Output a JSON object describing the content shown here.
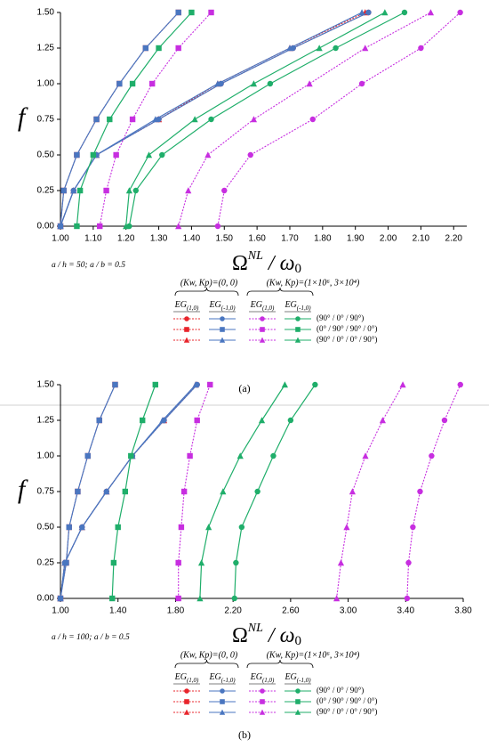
{
  "charts": [
    {
      "chart_data": {
        "type": "line",
        "panel": "(a)",
        "note": "a / h = 50;  a / b = 0.5",
        "y_label": "f",
        "x_label": {
          "base": "Ω",
          "sup": "NL",
          "mid": " / ω",
          "sub": "0"
        },
        "xlim": [
          1.0,
          2.24
        ],
        "ylim": [
          0,
          1.5
        ],
        "xticks": [
          {
            "value": 1.0,
            "label": "1.00"
          },
          {
            "value": 1.1,
            "label": "1.10"
          },
          {
            "value": 1.2,
            "label": "1.20"
          },
          {
            "value": 1.3,
            "label": "1.30"
          },
          {
            "value": 1.4,
            "label": "1.40"
          },
          {
            "value": 1.5,
            "label": "1.50"
          },
          {
            "value": 1.6,
            "label": "1.60"
          },
          {
            "value": 1.7,
            "label": "1.70"
          },
          {
            "value": 1.8,
            "label": "1.80"
          },
          {
            "value": 1.9,
            "label": "1.90"
          },
          {
            "value": 2.0,
            "label": "2.00"
          },
          {
            "value": 2.1,
            "label": "2.10"
          },
          {
            "value": 2.2,
            "label": "2.20"
          }
        ],
        "yticks": [
          {
            "value": 0,
            "label": "0.00"
          },
          {
            "value": 0.25,
            "label": "0.25"
          },
          {
            "value": 0.5,
            "label": "0.50"
          },
          {
            "value": 0.75,
            "label": "0.75"
          },
          {
            "value": 1.0,
            "label": "1.00"
          },
          {
            "value": 1.25,
            "label": "1.25"
          },
          {
            "value": 1.5,
            "label": "1.50"
          }
        ],
        "legend": {
          "headers": [
            "(Kw, Kp)=(0, 0)",
            "(Kw, Kp)=(1×10⁶, 3×10⁴)"
          ],
          "eg": [
            {
              "base": "EG",
              "sub": "(1,0)"
            },
            {
              "base": "EG",
              "sub": "(-1,0)"
            }
          ],
          "layups": [
            "(90° / 0° / 90°)",
            "(0° / 90° / 90° / 0°)",
            "(90° / 0° / 0° / 90°)"
          ]
        },
        "series": [
          {
            "color": "#e8242b",
            "dash": true,
            "marker": "circle",
            "x": [
              1.0,
              1.04,
              1.11,
              1.3,
              1.49,
              1.71,
              1.94
            ],
            "values": [
              0,
              0.25,
              0.5,
              0.75,
              1.0,
              1.25,
              1.5
            ]
          },
          {
            "color": "#e8242b",
            "dash": true,
            "marker": "square",
            "x": [
              1.0,
              1.01,
              1.05,
              1.11,
              1.18,
              1.26,
              1.36
            ],
            "values": [
              0,
              0.25,
              0.5,
              0.75,
              1.0,
              1.25,
              1.5
            ]
          },
          {
            "color": "#e8242b",
            "dash": true,
            "marker": "triangle",
            "x": [
              1.0,
              1.04,
              1.11,
              1.3,
              1.48,
              1.7,
              1.93
            ],
            "values": [
              0,
              0.25,
              0.5,
              0.75,
              1.0,
              1.25,
              1.5
            ]
          },
          {
            "color": "#4a76c0",
            "dash": false,
            "marker": "circle",
            "x": [
              1.0,
              1.04,
              1.11,
              1.3,
              1.49,
              1.71,
              1.94
            ],
            "values": [
              0,
              0.25,
              0.5,
              0.75,
              1.0,
              1.25,
              1.5
            ]
          },
          {
            "color": "#4a76c0",
            "dash": false,
            "marker": "square",
            "x": [
              1.0,
              1.01,
              1.05,
              1.11,
              1.18,
              1.26,
              1.36
            ],
            "values": [
              0,
              0.25,
              0.5,
              0.75,
              1.0,
              1.25,
              1.5
            ]
          },
          {
            "color": "#4a76c0",
            "dash": false,
            "marker": "triangle",
            "x": [
              1.0,
              1.04,
              1.11,
              1.29,
              1.48,
              1.7,
              1.92
            ],
            "values": [
              0,
              0.25,
              0.5,
              0.75,
              1.0,
              1.25,
              1.5
            ]
          },
          {
            "color": "#c72ee0",
            "dash": true,
            "marker": "circle",
            "x": [
              1.48,
              1.5,
              1.58,
              1.77,
              1.92,
              2.1,
              2.22
            ],
            "values": [
              0,
              0.25,
              0.5,
              0.75,
              1.0,
              1.25,
              1.5
            ]
          },
          {
            "color": "#c72ee0",
            "dash": true,
            "marker": "square",
            "x": [
              1.12,
              1.14,
              1.17,
              1.22,
              1.28,
              1.36,
              1.46
            ],
            "values": [
              0,
              0.25,
              0.5,
              0.75,
              1.0,
              1.25,
              1.5
            ]
          },
          {
            "color": "#c72ee0",
            "dash": true,
            "marker": "triangle",
            "x": [
              1.36,
              1.39,
              1.45,
              1.59,
              1.76,
              1.93,
              2.13
            ],
            "values": [
              0,
              0.25,
              0.5,
              0.75,
              1.0,
              1.25,
              1.5
            ]
          },
          {
            "color": "#1fae6a",
            "dash": false,
            "marker": "circle",
            "x": [
              1.21,
              1.23,
              1.31,
              1.46,
              1.64,
              1.84,
              2.05
            ],
            "values": [
              0,
              0.25,
              0.5,
              0.75,
              1.0,
              1.25,
              1.5
            ]
          },
          {
            "color": "#1fae6a",
            "dash": false,
            "marker": "square",
            "x": [
              1.05,
              1.06,
              1.1,
              1.15,
              1.22,
              1.3,
              1.4
            ],
            "values": [
              0,
              0.25,
              0.5,
              0.75,
              1.0,
              1.25,
              1.5
            ]
          },
          {
            "color": "#1fae6a",
            "dash": false,
            "marker": "triangle",
            "x": [
              1.2,
              1.21,
              1.27,
              1.41,
              1.59,
              1.79,
              1.99
            ],
            "values": [
              0,
              0.25,
              0.5,
              0.75,
              1.0,
              1.25,
              1.5
            ]
          }
        ]
      }
    },
    {
      "chart_data": {
        "type": "line",
        "panel": "(b)",
        "note": "a / h = 100;  a / b = 0.5",
        "y_label": "f",
        "x_label": {
          "base": "Ω",
          "sup": "NL",
          "mid": " / ω",
          "sub": "0"
        },
        "xlim": [
          1.0,
          3.8
        ],
        "ylim": [
          0,
          1.5
        ],
        "xticks": [
          {
            "value": 1.0,
            "label": "1.00"
          },
          {
            "value": 1.4,
            "label": "1.40"
          },
          {
            "value": 1.8,
            "label": "1.80"
          },
          {
            "value": 2.2,
            "label": "2.20"
          },
          {
            "value": 2.6,
            "label": "2.60"
          },
          {
            "value": 3.0,
            "label": "3.00"
          },
          {
            "value": 3.4,
            "label": "3.40"
          },
          {
            "value": 3.8,
            "label": "3.80"
          }
        ],
        "yticks": [
          {
            "value": 0,
            "label": "0.00"
          },
          {
            "value": 0.25,
            "label": "0.25"
          },
          {
            "value": 0.5,
            "label": "0.50"
          },
          {
            "value": 0.75,
            "label": "0.75"
          },
          {
            "value": 1.0,
            "label": "1.00"
          },
          {
            "value": 1.25,
            "label": "1.25"
          },
          {
            "value": 1.5,
            "label": "1.50"
          }
        ],
        "legend": {
          "headers": [
            "(Kw, Kp)=(0, 0)",
            "(Kw, Kp)=(1×10⁶, 3×10⁴)"
          ],
          "eg": [
            {
              "base": "EG",
              "sub": "(1,0)"
            },
            {
              "base": "EG",
              "sub": "(-1,0)"
            }
          ],
          "layups": [
            "(90° / 0° / 90°)",
            "(0° / 90° / 90° / 0°)",
            "(90° / 0° / 0° / 90°)"
          ]
        },
        "series": [
          {
            "color": "#e8242b",
            "dash": true,
            "marker": "circle",
            "x": [
              1.0,
              1.03,
              1.15,
              1.32,
              1.5,
              1.72,
              1.95
            ],
            "values": [
              0,
              0.25,
              0.5,
              0.75,
              1.0,
              1.25,
              1.5
            ]
          },
          {
            "color": "#e8242b",
            "dash": true,
            "marker": "square",
            "x": [
              1.0,
              1.04,
              1.06,
              1.12,
              1.19,
              1.27,
              1.38
            ],
            "values": [
              0,
              0.25,
              0.5,
              0.75,
              1.0,
              1.25,
              1.5
            ]
          },
          {
            "color": "#e8242b",
            "dash": true,
            "marker": "triangle",
            "x": [
              1.0,
              1.03,
              1.15,
              1.32,
              1.5,
              1.72,
              1.94
            ],
            "values": [
              0,
              0.25,
              0.5,
              0.75,
              1.0,
              1.25,
              1.5
            ]
          },
          {
            "color": "#4a76c0",
            "dash": false,
            "marker": "circle",
            "x": [
              1.0,
              1.03,
              1.15,
              1.32,
              1.5,
              1.72,
              1.95
            ],
            "values": [
              0,
              0.25,
              0.5,
              0.75,
              1.0,
              1.25,
              1.5
            ]
          },
          {
            "color": "#4a76c0",
            "dash": false,
            "marker": "square",
            "x": [
              1.0,
              1.04,
              1.06,
              1.12,
              1.19,
              1.27,
              1.38
            ],
            "values": [
              0,
              0.25,
              0.5,
              0.75,
              1.0,
              1.25,
              1.5
            ]
          },
          {
            "color": "#4a76c0",
            "dash": false,
            "marker": "triangle",
            "x": [
              1.0,
              1.03,
              1.15,
              1.32,
              1.5,
              1.71,
              1.94
            ],
            "values": [
              0,
              0.25,
              0.5,
              0.75,
              1.0,
              1.25,
              1.5
            ]
          },
          {
            "color": "#c72ee0",
            "dash": true,
            "marker": "circle",
            "x": [
              3.41,
              3.42,
              3.45,
              3.5,
              3.58,
              3.67,
              3.78
            ],
            "values": [
              0,
              0.25,
              0.5,
              0.75,
              1.0,
              1.25,
              1.5
            ]
          },
          {
            "color": "#c72ee0",
            "dash": true,
            "marker": "square",
            "x": [
              1.82,
              1.82,
              1.84,
              1.86,
              1.9,
              1.95,
              2.04
            ],
            "values": [
              0,
              0.25,
              0.5,
              0.75,
              1.0,
              1.25,
              1.5
            ]
          },
          {
            "color": "#c72ee0",
            "dash": true,
            "marker": "triangle",
            "x": [
              2.92,
              2.95,
              2.99,
              3.03,
              3.12,
              3.24,
              3.38
            ],
            "values": [
              0,
              0.25,
              0.5,
              0.75,
              1.0,
              1.25,
              1.5
            ]
          },
          {
            "color": "#1fae6a",
            "dash": false,
            "marker": "circle",
            "x": [
              2.21,
              2.22,
              2.26,
              2.37,
              2.48,
              2.6,
              2.77
            ],
            "values": [
              0,
              0.25,
              0.5,
              0.75,
              1.0,
              1.25,
              1.5
            ]
          },
          {
            "color": "#1fae6a",
            "dash": false,
            "marker": "square",
            "x": [
              1.36,
              1.37,
              1.4,
              1.45,
              1.49,
              1.57,
              1.66
            ],
            "values": [
              0,
              0.25,
              0.5,
              0.75,
              1.0,
              1.25,
              1.5
            ]
          },
          {
            "color": "#1fae6a",
            "dash": false,
            "marker": "triangle",
            "x": [
              1.97,
              1.98,
              2.03,
              2.13,
              2.25,
              2.4,
              2.56
            ],
            "values": [
              0,
              0.25,
              0.5,
              0.75,
              1.0,
              1.25,
              1.5
            ]
          }
        ]
      }
    }
  ]
}
